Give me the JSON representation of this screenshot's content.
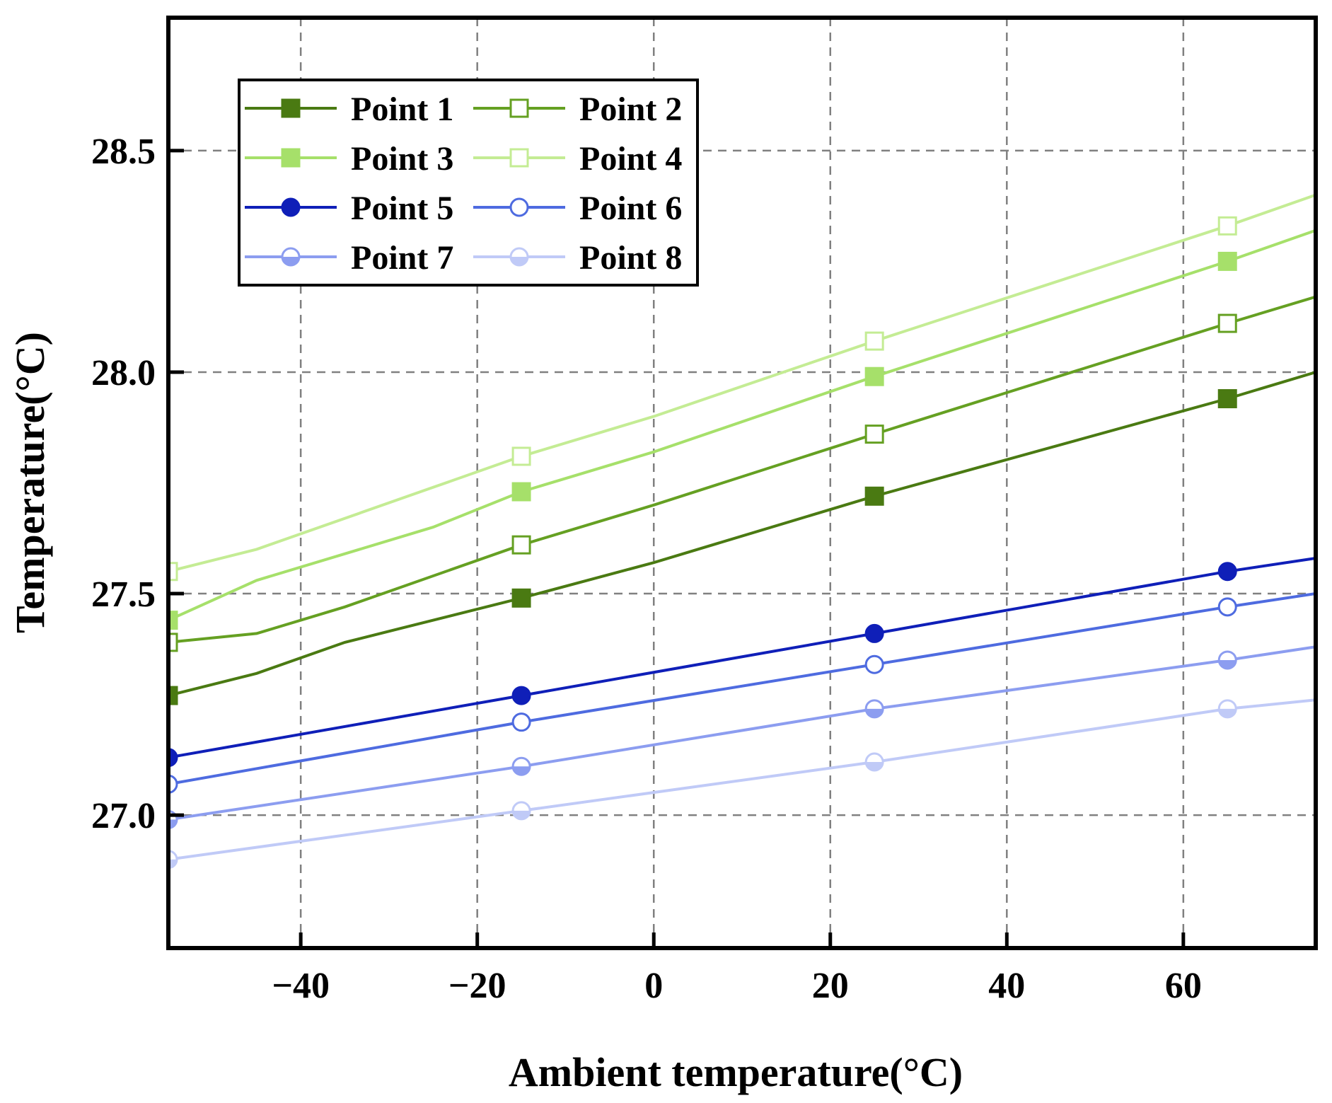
{
  "chart_data": {
    "type": "line",
    "title": "",
    "xlabel": "Ambient temperature(°C)",
    "ylabel": "Temperature(°C)",
    "xlim": [
      -55,
      75
    ],
    "ylim": [
      26.7,
      28.8
    ],
    "xticks": [
      -40,
      -20,
      0,
      20,
      40,
      60
    ],
    "xtick_labels": [
      "−40",
      "−20",
      "0",
      "20",
      "40",
      "60"
    ],
    "yticks": [
      27.0,
      27.5,
      28.0,
      28.5
    ],
    "ytick_labels": [
      "27.0",
      "27.5",
      "28.0",
      "28.5"
    ],
    "grid": true,
    "legend_position": "top-left",
    "series": [
      {
        "name": "Point 1",
        "color": "#4a7a12",
        "marker": "square",
        "filled": true,
        "line_x": [
          -55,
          -45,
          -35,
          -15,
          0,
          25,
          65,
          75
        ],
        "line_y": [
          27.27,
          27.32,
          27.39,
          27.49,
          27.57,
          27.72,
          27.94,
          28.0
        ],
        "marker_x": [
          -55,
          -15,
          25,
          65
        ],
        "marker_y": [
          27.27,
          27.49,
          27.72,
          27.94
        ]
      },
      {
        "name": "Point 2",
        "color": "#65a022",
        "marker": "square",
        "filled": false,
        "line_x": [
          -55,
          -45,
          -35,
          -15,
          0,
          25,
          65,
          75
        ],
        "line_y": [
          27.39,
          27.41,
          27.47,
          27.61,
          27.7,
          27.86,
          28.11,
          28.17
        ],
        "marker_x": [
          -55,
          -15,
          25,
          65
        ],
        "marker_y": [
          27.39,
          27.61,
          27.86,
          28.11
        ]
      },
      {
        "name": "Point 3",
        "color": "#a6e06a",
        "marker": "square",
        "filled": true,
        "line_x": [
          -55,
          -45,
          -25,
          -15,
          0,
          25,
          65,
          75
        ],
        "line_y": [
          27.44,
          27.53,
          27.65,
          27.73,
          27.82,
          27.99,
          28.25,
          28.32
        ],
        "marker_x": [
          -55,
          -15,
          25,
          65
        ],
        "marker_y": [
          27.44,
          27.73,
          27.99,
          28.25
        ]
      },
      {
        "name": "Point 4",
        "color": "#c4ec94",
        "marker": "square",
        "filled": false,
        "line_x": [
          -55,
          -45,
          -25,
          -15,
          0,
          25,
          65,
          75
        ],
        "line_y": [
          27.55,
          27.6,
          27.74,
          27.81,
          27.9,
          28.07,
          28.33,
          28.4
        ],
        "marker_x": [
          -55,
          -15,
          25,
          65
        ],
        "marker_y": [
          27.55,
          27.81,
          28.07,
          28.33
        ]
      },
      {
        "name": "Point 5",
        "color": "#0f1fb8",
        "marker": "circle",
        "filled": true,
        "line_x": [
          -55,
          -15,
          25,
          65,
          75
        ],
        "line_y": [
          27.13,
          27.27,
          27.41,
          27.55,
          27.58
        ],
        "marker_x": [
          -55,
          -15,
          25,
          65
        ],
        "marker_y": [
          27.13,
          27.27,
          27.41,
          27.55
        ]
      },
      {
        "name": "Point 6",
        "color": "#4e6be0",
        "marker": "circle",
        "filled": false,
        "line_x": [
          -55,
          -15,
          25,
          65,
          75
        ],
        "line_y": [
          27.07,
          27.21,
          27.34,
          27.47,
          27.5
        ],
        "marker_x": [
          -55,
          -15,
          25,
          65
        ],
        "marker_y": [
          27.07,
          27.21,
          27.34,
          27.47
        ]
      },
      {
        "name": "Point 7",
        "color": "#8c9df0",
        "marker": "half-circle",
        "filled": true,
        "line_x": [
          -55,
          -15,
          25,
          65,
          75
        ],
        "line_y": [
          26.99,
          27.11,
          27.24,
          27.35,
          27.38
        ],
        "marker_x": [
          -55,
          -15,
          25,
          65
        ],
        "marker_y": [
          26.99,
          27.11,
          27.24,
          27.35
        ]
      },
      {
        "name": "Point 8",
        "color": "#c0caf7",
        "marker": "half-circle",
        "filled": false,
        "line_x": [
          -55,
          -15,
          25,
          65,
          75
        ],
        "line_y": [
          26.9,
          27.01,
          27.12,
          27.24,
          27.26
        ],
        "marker_x": [
          -55,
          -15,
          25,
          65
        ],
        "marker_y": [
          26.9,
          27.01,
          27.12,
          27.24
        ]
      }
    ]
  }
}
